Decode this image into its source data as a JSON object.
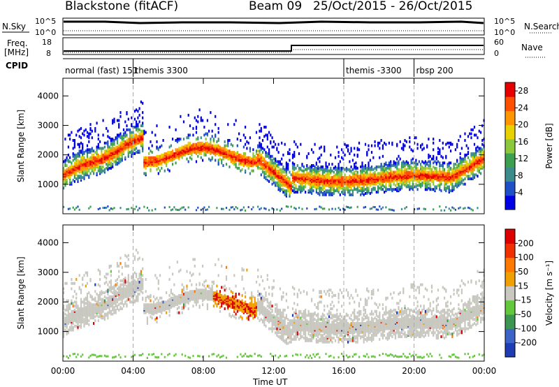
{
  "header": {
    "station": "Blackstone (fitACF)",
    "beam": "Beam 09",
    "dates": "25/Oct/2015 - 26/Oct/2015"
  },
  "top_panels": {
    "nsky_label": "N.Sky",
    "nsearch_label": "N.Search",
    "freq_label_1": "Freq.",
    "freq_label_2": "[MHz]",
    "nave_label": "Nave",
    "cpid_label": "CPID",
    "noise_ticks_left": [
      "10^5",
      "10^0"
    ],
    "noise_ticks_right": [
      "10^5",
      "10^0"
    ],
    "freq_ticks_left": [
      "18",
      "8"
    ],
    "freq_ticks_right": [
      "60",
      "0"
    ]
  },
  "cpid_segments": [
    {
      "label": "normal (fast) 151",
      "start_hour": 0
    },
    {
      "label": "themis 3300",
      "start_hour": 4
    },
    {
      "label": "themis -3300",
      "start_hour": 16
    },
    {
      "label": "rbsp 200",
      "start_hour": 20
    }
  ],
  "chart_data": [
    {
      "type": "heatmap",
      "title": "",
      "xlabel": "Time UT",
      "ylabel": "Slant Range [km]",
      "x_ticks": [
        "00:00",
        "04:00",
        "08:00",
        "12:00",
        "16:00",
        "20:00",
        "00:00"
      ],
      "xlim_hours": [
        0,
        24
      ],
      "ylim": [
        0,
        4600
      ],
      "y_ticks": [
        1000,
        2000,
        3000,
        4000
      ],
      "colorbar": {
        "label": "Power [dB]",
        "ticks": [
          4,
          8,
          12,
          16,
          20,
          24,
          28
        ],
        "range": [
          0,
          30
        ],
        "colors": [
          "#0000e6",
          "#2050c8",
          "#3c8c8c",
          "#3ca050",
          "#8cc83c",
          "#e6d200",
          "#ff9600",
          "#ff5000",
          "#e60000"
        ]
      }
    },
    {
      "type": "heatmap",
      "title": "",
      "xlabel": "Time UT",
      "ylabel": "Slant Range [km]",
      "x_ticks": [
        "00:00",
        "04:00",
        "08:00",
        "12:00",
        "16:00",
        "20:00",
        "00:00"
      ],
      "xlim_hours": [
        0,
        24
      ],
      "ylim": [
        0,
        4600
      ],
      "y_ticks": [
        1000,
        2000,
        3000,
        4000
      ],
      "colorbar": {
        "label": "Velocity [m s⁻¹]",
        "ticks": [
          "200",
          "100",
          "50",
          "15",
          "-15",
          "-50",
          "-100",
          "-200"
        ],
        "colors": [
          "#1e3cb4",
          "#3c64c8",
          "#3c9650",
          "#64c83c",
          "#c8c8c0",
          "#f0a000",
          "#ff7800",
          "#f03000",
          "#dc0000"
        ]
      }
    }
  ],
  "time_axis_label": "Time UT"
}
